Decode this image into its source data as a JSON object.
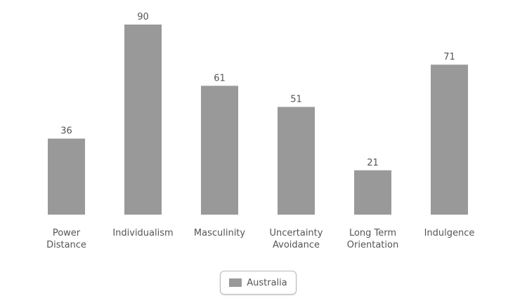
{
  "chart_data": {
    "type": "bar",
    "categories": [
      "Power\nDistance",
      "Individualism",
      "Masculinity",
      "Uncertainty\nAvoidance",
      "Long Term\nOrientation",
      "Indulgence"
    ],
    "series": [
      {
        "name": "Australia",
        "color": "#999999",
        "values": [
          36,
          90,
          61,
          51,
          21,
          71
        ]
      }
    ]
  }
}
